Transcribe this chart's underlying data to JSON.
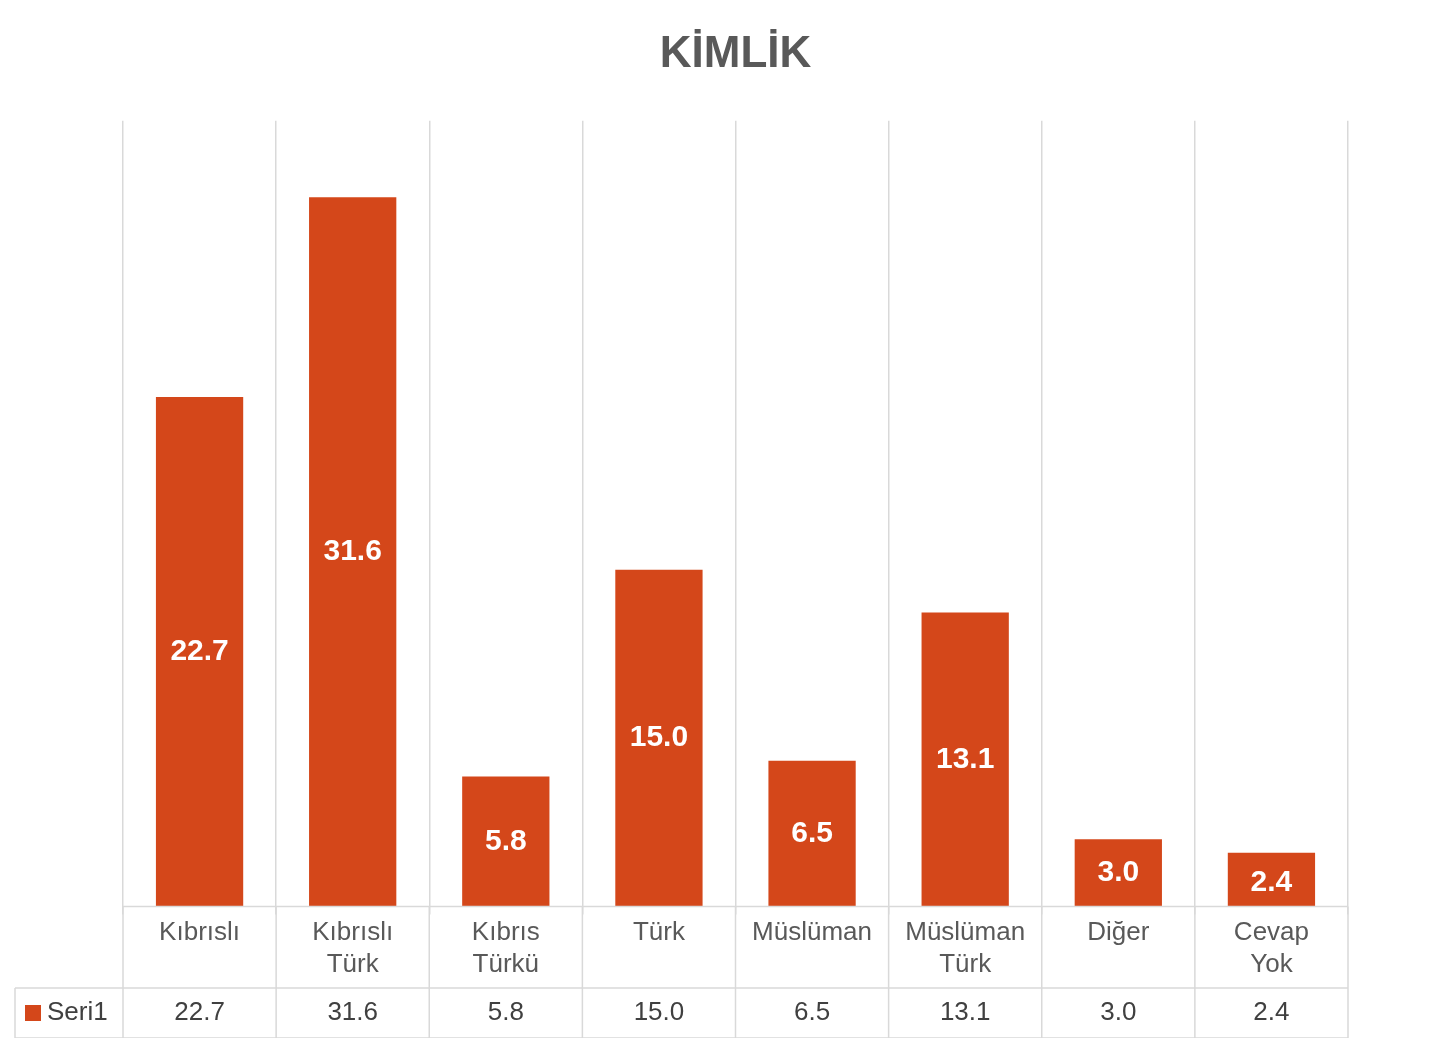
{
  "chart_data": {
    "type": "bar",
    "title": "KİMLİK",
    "categories": [
      "Kıbrıslı",
      "Kıbrıslı Türk",
      "Kıbrıs Türkü",
      "Türk",
      "Müslüman",
      "Müslüman Türk",
      "Diğer",
      "Cevap Yok"
    ],
    "series": [
      {
        "name": "Seri1",
        "color": "#d4471a",
        "values": [
          22.7,
          31.6,
          5.8,
          15.0,
          6.5,
          13.1,
          3.0,
          2.4
        ],
        "value_labels": [
          "22.7",
          "31.6",
          "5.8",
          "15.0",
          "6.5",
          "13.1",
          "3.0",
          "2.4"
        ]
      }
    ],
    "grid": "x",
    "legend": "bottom"
  }
}
